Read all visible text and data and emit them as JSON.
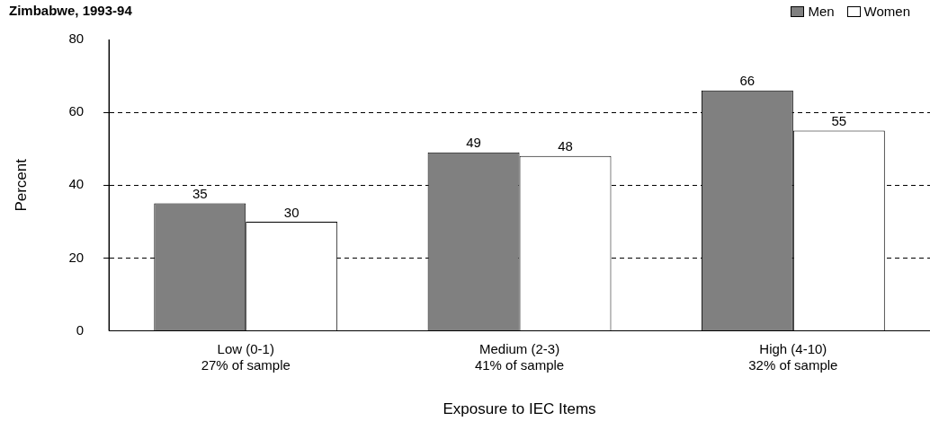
{
  "chart_data": {
    "type": "bar",
    "title": "Zimbabwe, 1993-94",
    "xlabel": "Exposure to IEC Items",
    "ylabel": "Percent",
    "categories": [
      "Low (0-1)\n27% of sample",
      "Medium (2-3)\n41% of sample",
      "High (4-10)\n32% of sample"
    ],
    "series": [
      {
        "name": "Men",
        "color": "#808080",
        "values": [
          35,
          49,
          66
        ]
      },
      {
        "name": "Women",
        "color": "#ffffff",
        "values": [
          30,
          48,
          55
        ]
      }
    ],
    "ylim": [
      0,
      80
    ],
    "yticks": [
      0,
      20,
      40,
      60,
      80
    ],
    "grid": "y",
    "legend": "top right",
    "data_labels": true
  }
}
